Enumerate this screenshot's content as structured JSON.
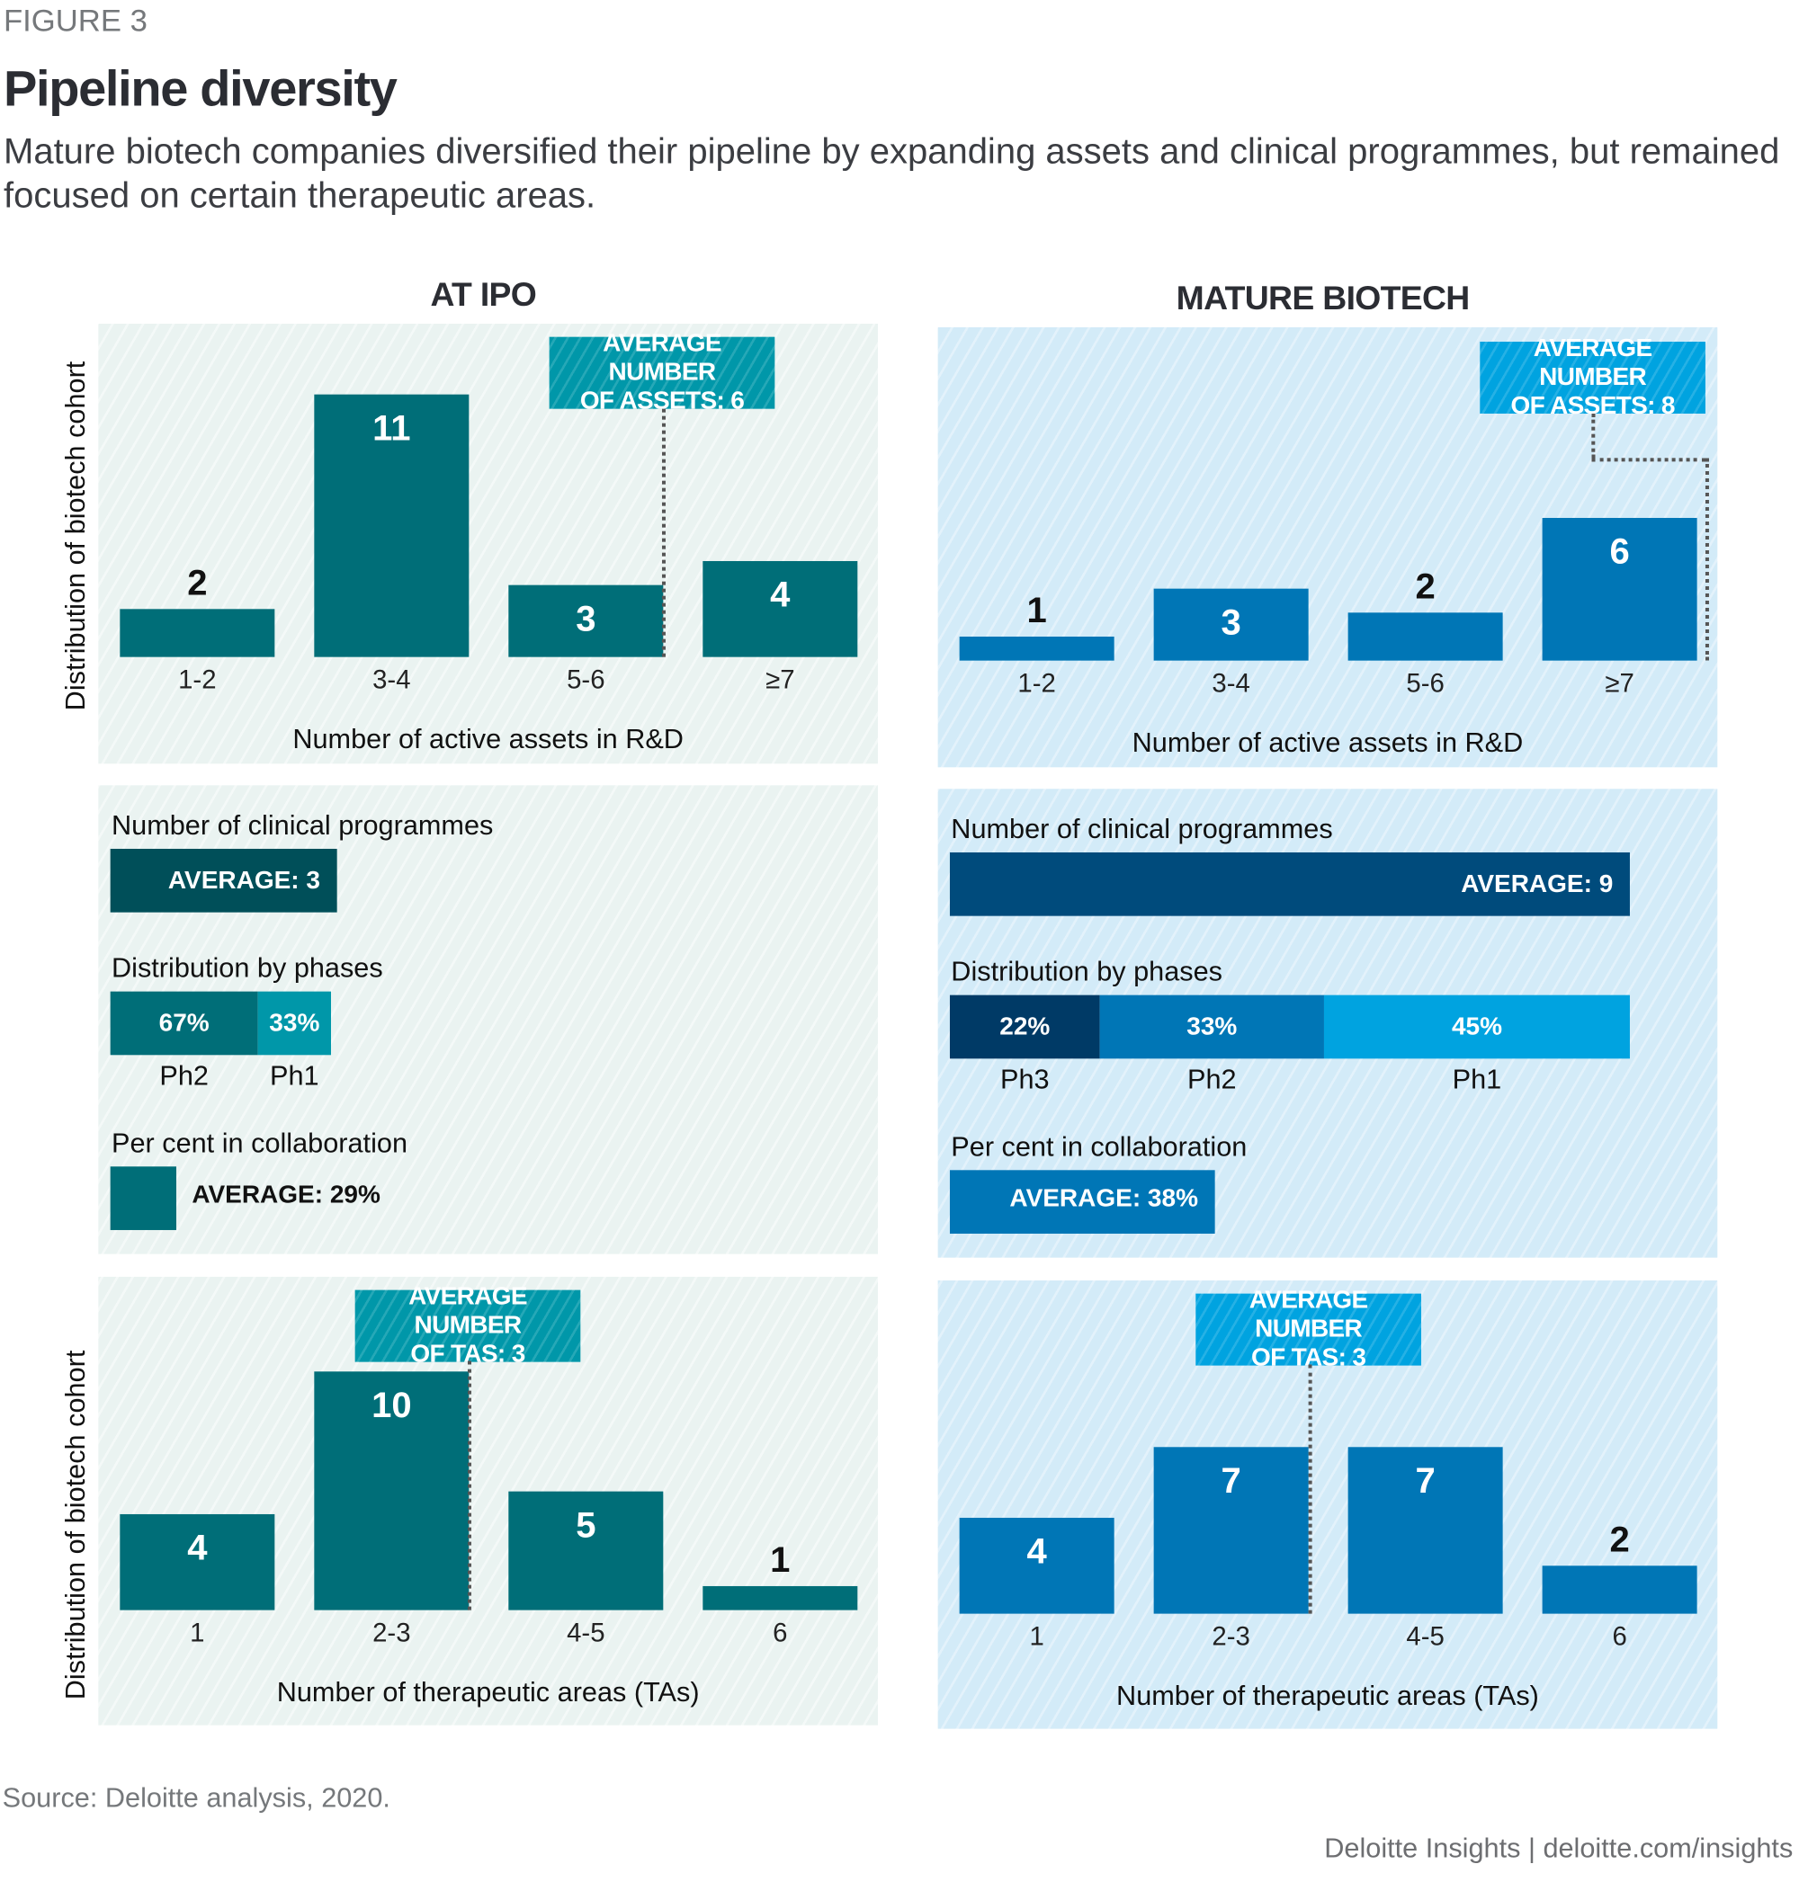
{
  "header": {
    "figure_label": "FIGURE 3",
    "title": "Pipeline diversity",
    "subtitle": "Mature biotech companies diversified their pipeline by expanding assets and clinical programmes, but remained focused on certain therapeutic areas."
  },
  "columns": [
    {
      "heading": "AT IPO"
    },
    {
      "heading": "MATURE BIOTECH"
    }
  ],
  "y_axis_label": "Distribution of biotech cohort",
  "colors": {
    "ipo_bar": "#006e78",
    "ipo_avg_box": "#0097a9",
    "mature_bar": "#0076b6",
    "mature_avg_box": "#00a3e0"
  },
  "chart_data": [
    {
      "type": "bar",
      "panel": "AT IPO",
      "xlabel": "Number of active assets in R&D",
      "ylabel": "Distribution of biotech cohort",
      "categories": [
        "1-2",
        "3-4",
        "5-6",
        "≥7"
      ],
      "values": [
        2,
        11,
        3,
        4
      ],
      "annotation": [
        "AVERAGE NUMBER",
        "OF ASSETS: 6"
      ],
      "color": "#006e78"
    },
    {
      "type": "bar",
      "panel": "MATURE BIOTECH",
      "xlabel": "Number of active assets in R&D",
      "categories": [
        "1-2",
        "3-4",
        "5-6",
        "≥7"
      ],
      "values": [
        1,
        3,
        2,
        6
      ],
      "annotation": [
        "AVERAGE NUMBER",
        "OF ASSETS: 8"
      ],
      "color": "#0076b6"
    },
    {
      "type": "bar",
      "panel": "AT IPO",
      "xlabel": "Number of therapeutic areas (TAs)",
      "ylabel": "Distribution of biotech cohort",
      "categories": [
        "1",
        "2-3",
        "4-5",
        "6"
      ],
      "values": [
        4,
        10,
        5,
        1
      ],
      "annotation": [
        "AVERAGE NUMBER",
        "OF TAS: 3"
      ],
      "color": "#006e78"
    },
    {
      "type": "bar",
      "panel": "MATURE BIOTECH",
      "xlabel": "Number of therapeutic areas (TAs)",
      "categories": [
        "1",
        "2-3",
        "4-5",
        "6"
      ],
      "values": [
        4,
        7,
        7,
        2
      ],
      "annotation": [
        "AVERAGE NUMBER",
        "OF TAS: 3"
      ],
      "color": "#0076b6"
    }
  ],
  "programmes": [
    {
      "programmes_label": "Number of clinical programmes",
      "programmes_avg": "AVERAGE: 3",
      "programmes_value": 3,
      "programmes_color": "#004f59",
      "phases_label": "Distribution by phases",
      "phases": [
        {
          "name": "Ph2",
          "pct": "67%",
          "value": 67,
          "color": "#006e78"
        },
        {
          "name": "Ph1",
          "pct": "33%",
          "value": 33,
          "color": "#0097a9"
        }
      ],
      "collab_label": "Per cent in collaboration",
      "collab_avg": "AVERAGE: 29%",
      "collab_value": 29,
      "collab_color": "#006e78"
    },
    {
      "programmes_label": "Number of clinical programmes",
      "programmes_avg": "AVERAGE: 9",
      "programmes_value": 9,
      "programmes_color": "#004b7c",
      "phases_label": "Distribution by phases",
      "phases": [
        {
          "name": "Ph3",
          "pct": "22%",
          "value": 22,
          "color": "#003a66"
        },
        {
          "name": "Ph2",
          "pct": "33%",
          "value": 33,
          "color": "#0076b6"
        },
        {
          "name": "Ph1",
          "pct": "45%",
          "value": 45,
          "color": "#00a3e0"
        }
      ],
      "collab_label": "Per cent in collaboration",
      "collab_avg": "AVERAGE: 38%",
      "collab_value": 38,
      "collab_color": "#0076b6"
    }
  ],
  "source": "Source: Deloitte analysis, 2020.",
  "footer": "Deloitte Insights | deloitte.com/insights"
}
